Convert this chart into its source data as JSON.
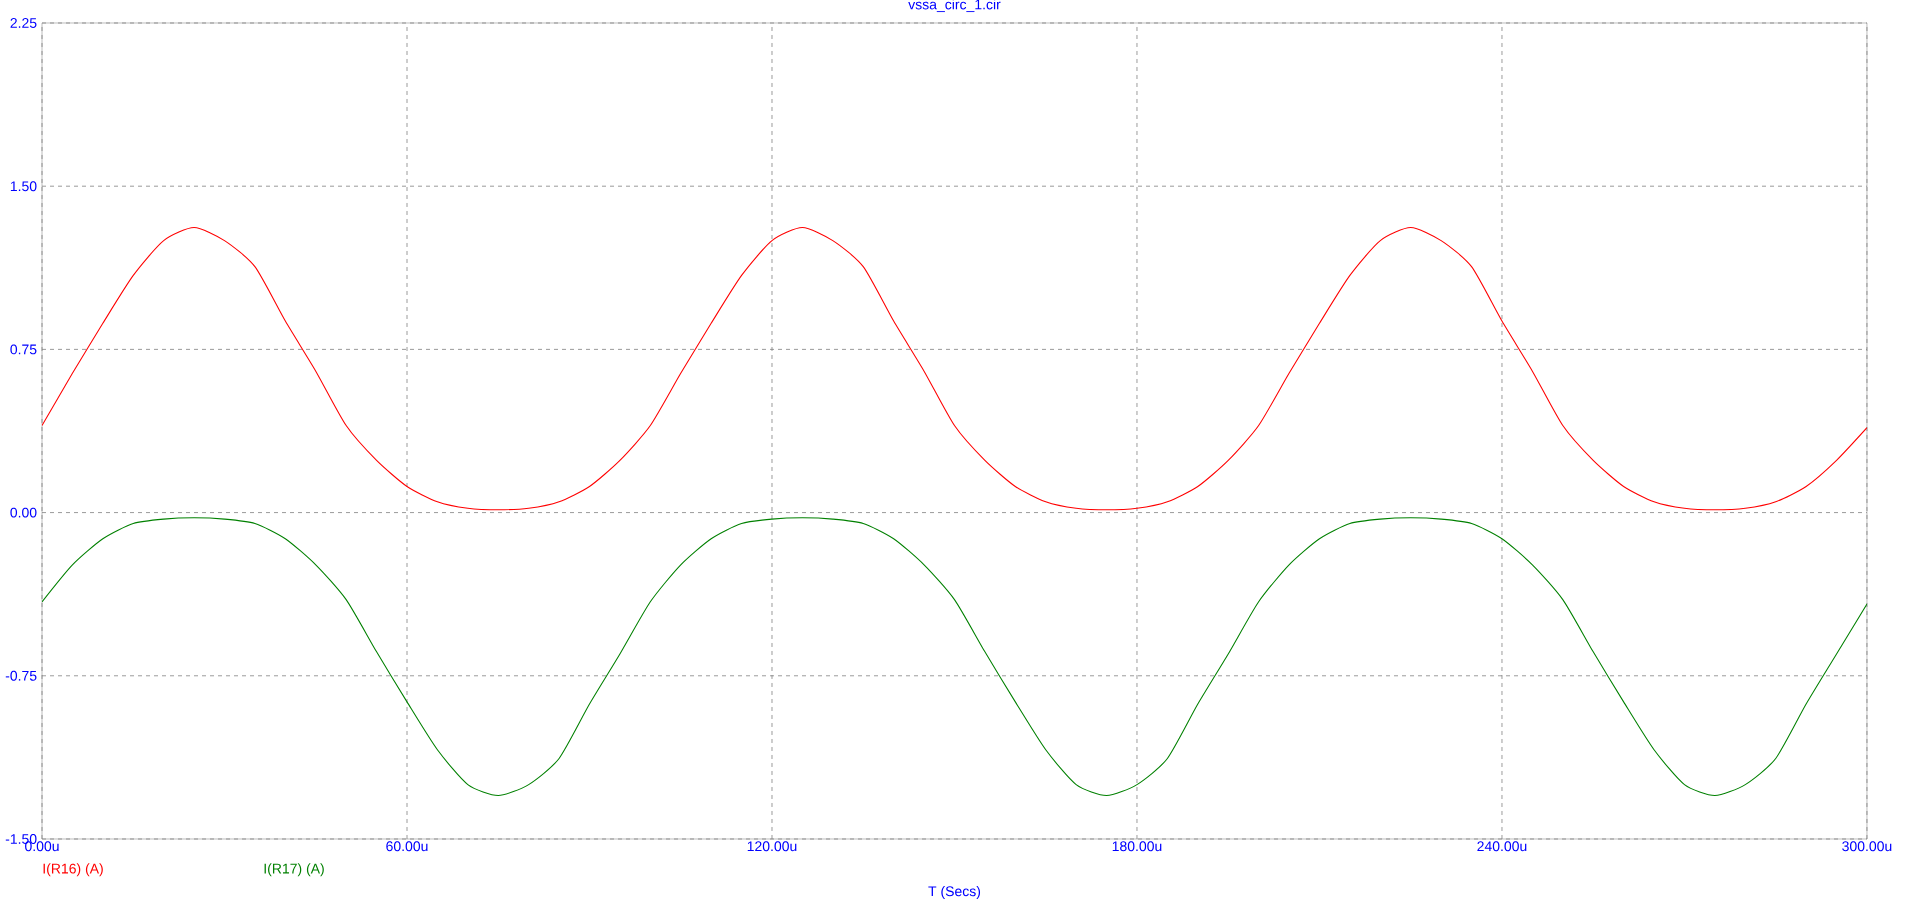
{
  "chart_data": {
    "type": "line",
    "title": "vssa_circ_1.cir",
    "xlabel": "T (Secs)",
    "x": [
      0,
      5,
      10,
      15,
      20,
      25,
      30,
      35,
      40,
      45,
      50,
      55,
      60,
      65,
      70,
      75,
      80,
      85,
      90,
      95,
      100,
      105,
      110,
      115,
      120,
      125,
      130,
      135,
      140,
      145,
      150,
      155,
      160,
      165,
      170,
      175,
      180,
      185,
      190,
      195,
      200,
      205,
      210,
      215,
      220,
      225,
      230,
      235,
      240,
      245,
      250,
      255,
      260,
      265,
      270,
      275,
      280,
      285,
      290,
      295,
      300
    ],
    "series": [
      {
        "name": "I(R16) (A)",
        "color": "#ff0000",
        "values": [
          0.4,
          0.64,
          0.87,
          1.09,
          1.25,
          1.31,
          1.25,
          1.13,
          0.88,
          0.65,
          0.4,
          0.24,
          0.12,
          0.05,
          0.02,
          0.013,
          0.02,
          0.05,
          0.12,
          0.24,
          0.4,
          0.64,
          0.87,
          1.09,
          1.25,
          1.31,
          1.25,
          1.13,
          0.88,
          0.65,
          0.4,
          0.24,
          0.12,
          0.05,
          0.02,
          0.013,
          0.02,
          0.05,
          0.12,
          0.24,
          0.4,
          0.64,
          0.87,
          1.09,
          1.25,
          1.31,
          1.25,
          1.13,
          0.88,
          0.65,
          0.4,
          0.24,
          0.12,
          0.05,
          0.02,
          0.013,
          0.02,
          0.05,
          0.12,
          0.24,
          0.39
        ]
      },
      {
        "name": "I(R17) (A)",
        "color": "#008000",
        "values": [
          -0.41,
          -0.24,
          -0.12,
          -0.05,
          -0.03,
          -0.024,
          -0.03,
          -0.05,
          -0.12,
          -0.24,
          -0.4,
          -0.64,
          -0.87,
          -1.09,
          -1.25,
          -1.3,
          -1.25,
          -1.13,
          -0.88,
          -0.65,
          -0.41,
          -0.24,
          -0.12,
          -0.05,
          -0.03,
          -0.024,
          -0.03,
          -0.05,
          -0.12,
          -0.24,
          -0.4,
          -0.64,
          -0.87,
          -1.09,
          -1.25,
          -1.3,
          -1.25,
          -1.13,
          -0.88,
          -0.65,
          -0.41,
          -0.24,
          -0.12,
          -0.05,
          -0.03,
          -0.024,
          -0.03,
          -0.05,
          -0.12,
          -0.24,
          -0.4,
          -0.64,
          -0.87,
          -1.09,
          -1.25,
          -1.3,
          -1.25,
          -1.13,
          -0.88,
          -0.65,
          -0.42
        ]
      }
    ],
    "xlim": [
      0,
      300
    ],
    "xticks": [
      {
        "value": 0,
        "label": "0.00u"
      },
      {
        "value": 60,
        "label": "60.00u"
      },
      {
        "value": 120,
        "label": "120.00u"
      },
      {
        "value": 180,
        "label": "180.00u"
      },
      {
        "value": 240,
        "label": "240.00u"
      },
      {
        "value": 300,
        "label": "300.00u"
      }
    ],
    "ylim": [
      -1.5,
      2.25
    ],
    "yticks": [
      {
        "value": -1.5,
        "label": "-1.50"
      },
      {
        "value": -0.75,
        "label": "-0.75"
      },
      {
        "value": 0,
        "label": "0.00"
      },
      {
        "value": 0.75,
        "label": "0.75"
      },
      {
        "value": 1.5,
        "label": "1.50"
      },
      {
        "value": 2.25,
        "label": "2.25"
      }
    ],
    "grid": true,
    "legend": "bottom left"
  }
}
